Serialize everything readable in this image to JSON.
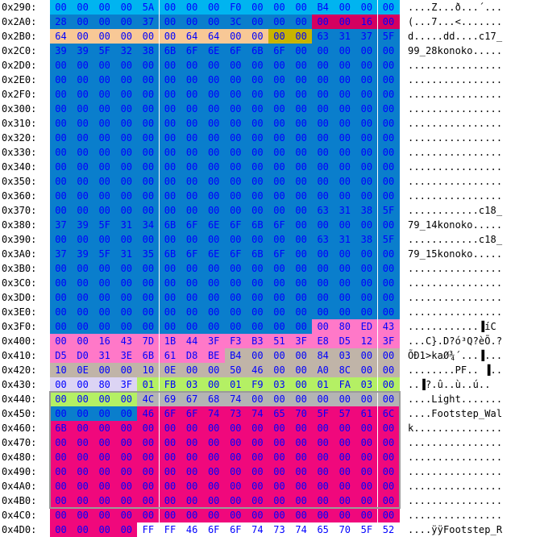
{
  "colors": {
    "bg": "#ffffff",
    "text_dark": "#000000",
    "text_blue": "#0000ff",
    "cyan": "#00b4f0",
    "steel": "#0a7ecc",
    "crimson": "#d40060",
    "peach": "#f8c896",
    "olive": "#c8b400",
    "tan": "#c0b4a8",
    "pink": "#ff78c8",
    "lavender": "#dcd4f4",
    "lime": "#b4f064",
    "gray": "#b4b4b4",
    "magenta": "#f0087c",
    "white": "#ffffff"
  },
  "rows": [
    {
      "addr": "0x290:",
      "bytes": "00 00 00 00 5A 00 00 00 F0 00 00 00 B4 00 00 00",
      "colors": [
        "cyan",
        "cyan",
        "cyan",
        "cyan",
        "cyan",
        "cyan",
        "cyan",
        "cyan",
        "cyan",
        "cyan",
        "cyan",
        "cyan",
        "cyan",
        "cyan",
        "cyan",
        "cyan"
      ],
      "ascii": "....Z...ð...´..."
    },
    {
      "addr": "0x2A0:",
      "bytes": "28 00 00 00 37 00 00 00 3C 00 00 00 00 00 16 00",
      "colors": [
        "steel",
        "steel",
        "steel",
        "steel",
        "steel",
        "steel",
        "steel",
        "steel",
        "steel",
        "steel",
        "steel",
        "steel",
        "crimson",
        "crimson",
        "crimson",
        "crimson"
      ],
      "ascii": "(...7...<......."
    },
    {
      "addr": "0x2B0:",
      "bytes": "64 00 00 00 00 00 64 64 00 00 00 00 63 31 37 5F",
      "colors": [
        "peach",
        "peach",
        "peach",
        "peach",
        "peach",
        "peach",
        "peach",
        "peach",
        "peach",
        "peach",
        "olive",
        "olive",
        "steel",
        "steel",
        "steel",
        "steel"
      ],
      "ascii": "d.....dd....c17_"
    },
    {
      "addr": "0x2C0:",
      "bytes": "39 39 5F 32 38 6B 6F 6E 6F 6B 6F 00 00 00 00 00",
      "colors": [
        "steel",
        "steel",
        "steel",
        "steel",
        "steel",
        "steel",
        "steel",
        "steel",
        "steel",
        "steel",
        "steel",
        "steel",
        "steel",
        "steel",
        "steel",
        "steel"
      ],
      "ascii": "99_28konoko....."
    },
    {
      "addr": "0x2D0:",
      "bytes": "00 00 00 00 00 00 00 00 00 00 00 00 00 00 00 00",
      "colors": "steel",
      "ascii": "................"
    },
    {
      "addr": "0x2E0:",
      "bytes": "00 00 00 00 00 00 00 00 00 00 00 00 00 00 00 00",
      "colors": "steel",
      "ascii": "................"
    },
    {
      "addr": "0x2F0:",
      "bytes": "00 00 00 00 00 00 00 00 00 00 00 00 00 00 00 00",
      "colors": "steel",
      "ascii": "................"
    },
    {
      "addr": "0x300:",
      "bytes": "00 00 00 00 00 00 00 00 00 00 00 00 00 00 00 00",
      "colors": "steel",
      "ascii": "................"
    },
    {
      "addr": "0x310:",
      "bytes": "00 00 00 00 00 00 00 00 00 00 00 00 00 00 00 00",
      "colors": "steel",
      "ascii": "................"
    },
    {
      "addr": "0x320:",
      "bytes": "00 00 00 00 00 00 00 00 00 00 00 00 00 00 00 00",
      "colors": "steel",
      "ascii": "................"
    },
    {
      "addr": "0x330:",
      "bytes": "00 00 00 00 00 00 00 00 00 00 00 00 00 00 00 00",
      "colors": "steel",
      "ascii": "................"
    },
    {
      "addr": "0x340:",
      "bytes": "00 00 00 00 00 00 00 00 00 00 00 00 00 00 00 00",
      "colors": "steel",
      "ascii": "................"
    },
    {
      "addr": "0x350:",
      "bytes": "00 00 00 00 00 00 00 00 00 00 00 00 00 00 00 00",
      "colors": "steel",
      "ascii": "................"
    },
    {
      "addr": "0x360:",
      "bytes": "00 00 00 00 00 00 00 00 00 00 00 00 00 00 00 00",
      "colors": "steel",
      "ascii": "................"
    },
    {
      "addr": "0x370:",
      "bytes": "00 00 00 00 00 00 00 00 00 00 00 00 63 31 38 5F",
      "colors": "steel",
      "ascii": "............c18_"
    },
    {
      "addr": "0x380:",
      "bytes": "37 39 5F 31 34 6B 6F 6E 6F 6B 6F 00 00 00 00 00",
      "colors": "steel",
      "ascii": "79_14konoko....."
    },
    {
      "addr": "0x390:",
      "bytes": "00 00 00 00 00 00 00 00 00 00 00 00 63 31 38 5F",
      "colors": "steel",
      "ascii": "............c18_"
    },
    {
      "addr": "0x3A0:",
      "bytes": "37 39 5F 31 35 6B 6F 6E 6F 6B 6F 00 00 00 00 00",
      "colors": "steel",
      "ascii": "79_15konoko....."
    },
    {
      "addr": "0x3B0:",
      "bytes": "00 00 00 00 00 00 00 00 00 00 00 00 00 00 00 00",
      "colors": "steel",
      "ascii": "................"
    },
    {
      "addr": "0x3C0:",
      "bytes": "00 00 00 00 00 00 00 00 00 00 00 00 00 00 00 00",
      "colors": "steel",
      "ascii": "................"
    },
    {
      "addr": "0x3D0:",
      "bytes": "00 00 00 00 00 00 00 00 00 00 00 00 00 00 00 00",
      "colors": "steel",
      "ascii": "................"
    },
    {
      "addr": "0x3E0:",
      "bytes": "00 00 00 00 00 00 00 00 00 00 00 00 00 00 00 00",
      "colors": "steel",
      "ascii": "................"
    },
    {
      "addr": "0x3F0:",
      "bytes": "00 00 00 00 00 00 00 00 00 00 00 00 00 80 ED 43",
      "colors": [
        "steel",
        "steel",
        "steel",
        "steel",
        "steel",
        "steel",
        "steel",
        "steel",
        "steel",
        "steel",
        "steel",
        "steel",
        "pink",
        "pink",
        "pink",
        "pink"
      ],
      "ascii": "............▐íC"
    },
    {
      "addr": "0x400:",
      "bytes": "00 00 16 43 7D 1B 44 3F F3 B3 51 3F E8 D5 12 3F",
      "colors": "pink",
      "ascii": "...C}.D?ó³Q?èÕ.?"
    },
    {
      "addr": "0x410:",
      "bytes": "D5 D0 31 3E 6B 61 D8 BE B4 00 00 00 84 03 00 00",
      "colors": [
        "pink",
        "pink",
        "pink",
        "pink",
        "pink",
        "pink",
        "pink",
        "pink",
        "tan",
        "tan",
        "tan",
        "tan",
        "tan",
        "tan",
        "tan",
        "tan"
      ],
      "ascii": "ÕÐ1>kaØ¾´...▐..."
    },
    {
      "addr": "0x420:",
      "bytes": "10 0E 00 00 10 0E 00 00 50 46 00 00 A0 8C 00 00",
      "colors": "tan",
      "ascii": "........PF.. ▐.."
    },
    {
      "addr": "0x430:",
      "bytes": "00 00 80 3F 01 FB 03 00 01 F9 03 00 01 FA 03 00",
      "colors": [
        "lavender",
        "lavender",
        "lavender",
        "lavender",
        "lime",
        "lime",
        "lime",
        "lime",
        "lime",
        "lime",
        "lime",
        "lime",
        "lime",
        "lime",
        "lime",
        "lime"
      ],
      "ascii": "..▐?.û..ù..ú.."
    },
    {
      "addr": "0x440:",
      "bytes": "00 00 00 00 4C 69 67 68 74 00 00 00 00 00 00 00",
      "colors": [
        "lime",
        "lime",
        "lime",
        "lime",
        "gray",
        "gray",
        "gray",
        "gray",
        "gray",
        "gray",
        "gray",
        "gray",
        "gray",
        "gray",
        "gray",
        "gray"
      ],
      "ascii": "....Light......."
    },
    {
      "addr": "0x450:",
      "bytes": "00 00 00 00 46 6F 6F 74 73 74 65 70 5F 57 61 6C",
      "colors": [
        "steel",
        "steel",
        "steel",
        "steel",
        "magenta",
        "magenta",
        "magenta",
        "magenta",
        "magenta",
        "magenta",
        "magenta",
        "magenta",
        "magenta",
        "magenta",
        "magenta",
        "magenta"
      ],
      "ascii": "....Footstep_Wal"
    },
    {
      "addr": "0x460:",
      "bytes": "6B 00 00 00 00 00 00 00 00 00 00 00 00 00 00 00",
      "colors": "magenta",
      "ascii": "k..............."
    },
    {
      "addr": "0x470:",
      "bytes": "00 00 00 00 00 00 00 00 00 00 00 00 00 00 00 00",
      "colors": "magenta",
      "ascii": "................"
    },
    {
      "addr": "0x480:",
      "bytes": "00 00 00 00 00 00 00 00 00 00 00 00 00 00 00 00",
      "colors": "magenta",
      "ascii": "................"
    },
    {
      "addr": "0x490:",
      "bytes": "00 00 00 00 00 00 00 00 00 00 00 00 00 00 00 00",
      "colors": "magenta",
      "ascii": "................"
    },
    {
      "addr": "0x4A0:",
      "bytes": "00 00 00 00 00 00 00 00 00 00 00 00 00 00 00 00",
      "colors": "magenta",
      "ascii": "................"
    },
    {
      "addr": "0x4B0:",
      "bytes": "00 00 00 00 00 00 00 00 00 00 00 00 00 00 00 00",
      "colors": "magenta",
      "ascii": "................"
    },
    {
      "addr": "0x4C0:",
      "bytes": "00 00 00 00 00 00 00 00 00 00 00 00 00 00 00 00",
      "colors": "magenta",
      "ascii": "................"
    },
    {
      "addr": "0x4D0:",
      "bytes": "00 00 00 00 FF FF 46 6F 6F 74 73 74 65 70 5F 52",
      "colors": [
        "magenta",
        "magenta",
        "magenta",
        "magenta",
        "white",
        "white",
        "white",
        "white",
        "white",
        "white",
        "white",
        "white",
        "white",
        "white",
        "white",
        "white"
      ],
      "ascii": "....ÿÿFootstep_R"
    }
  ]
}
